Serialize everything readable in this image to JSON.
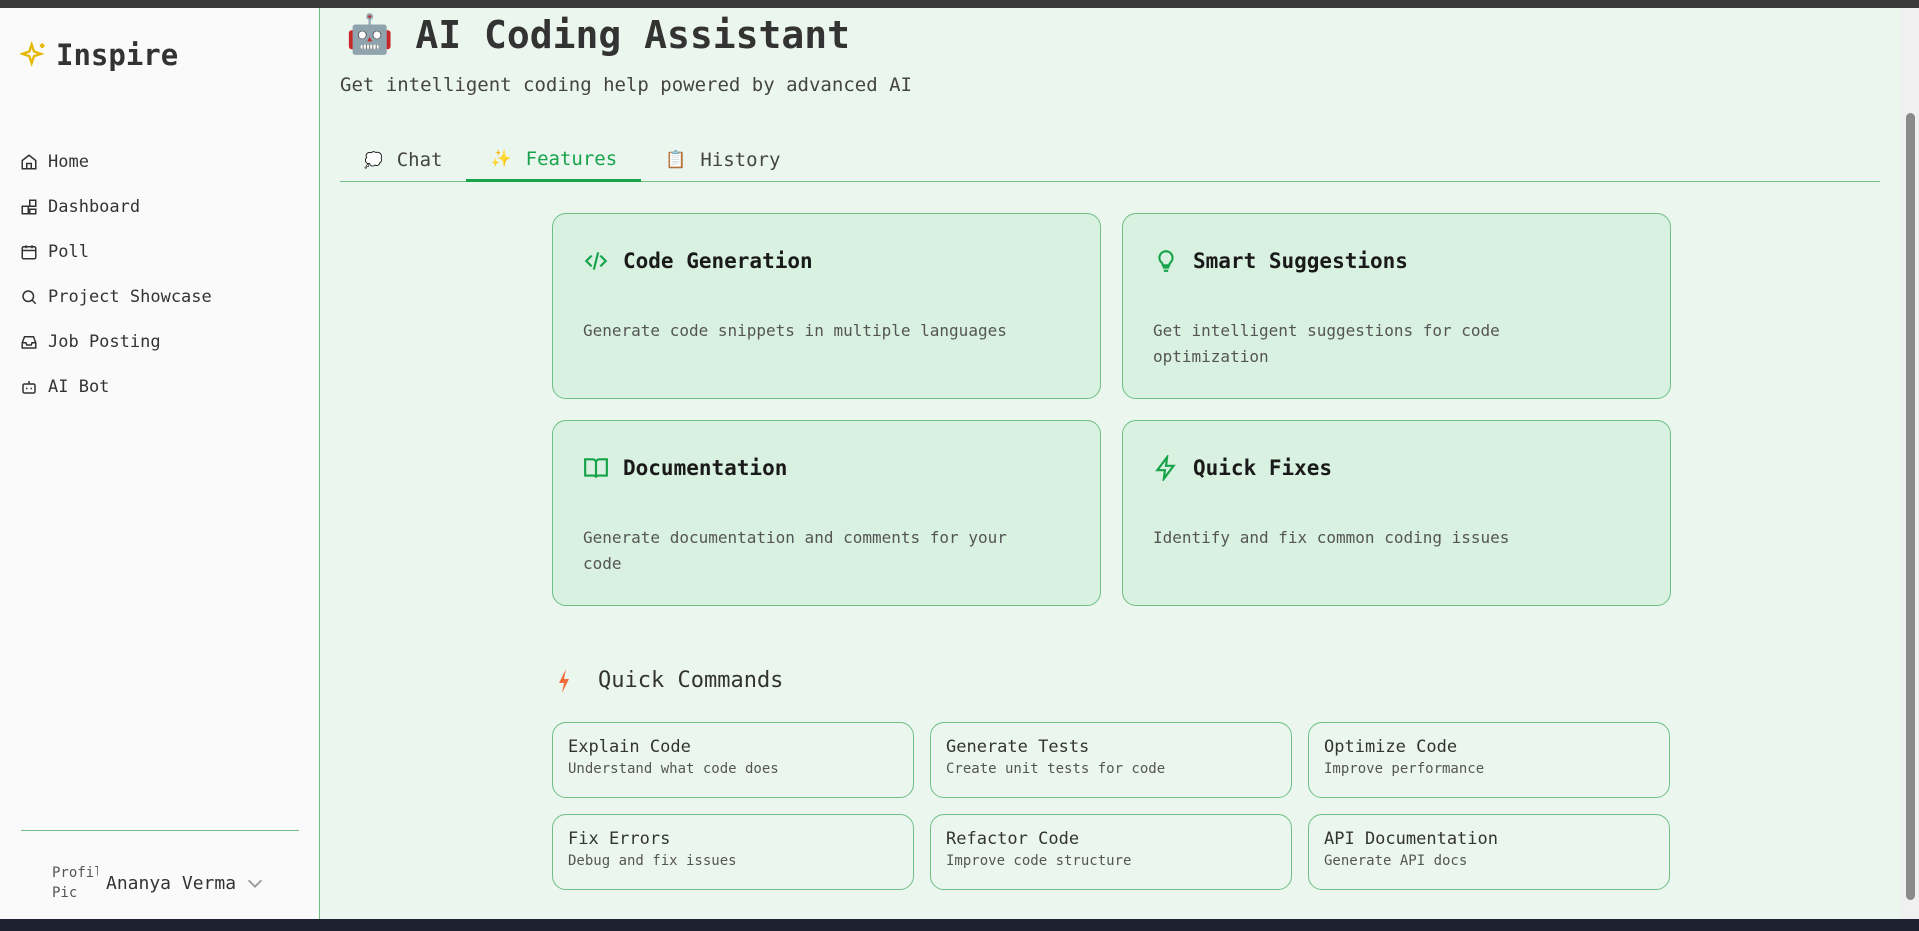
{
  "sidebar": {
    "brand": "Inspire",
    "items": [
      {
        "label": "Home",
        "icon": "home-icon"
      },
      {
        "label": "Dashboard",
        "icon": "dashboard-icon"
      },
      {
        "label": "Poll",
        "icon": "calendar-icon"
      },
      {
        "label": "Project Showcase",
        "icon": "search-icon"
      },
      {
        "label": "Job Posting",
        "icon": "inbox-icon"
      },
      {
        "label": "AI Bot",
        "icon": "bot-icon"
      }
    ],
    "profile": {
      "avatar_alt": "Profile Pic",
      "name": "Ananya Verma"
    }
  },
  "header": {
    "title": "AI Coding Assistant",
    "subtitle": "Get intelligent coding help powered by advanced AI"
  },
  "tabs": [
    {
      "icon": "💭",
      "label": "Chat"
    },
    {
      "icon": "✨",
      "label": "Features",
      "active": true
    },
    {
      "icon": "📋",
      "label": "History"
    }
  ],
  "features": [
    {
      "title": "Code Generation",
      "desc": "Generate code snippets in multiple languages",
      "icon": "code-icon"
    },
    {
      "title": "Smart Suggestions",
      "desc": "Get intelligent suggestions for code optimization",
      "icon": "lightbulb-icon"
    },
    {
      "title": "Documentation",
      "desc": "Generate documentation and comments for your code",
      "icon": "book-icon"
    },
    {
      "title": "Quick Fixes",
      "desc": "Identify and fix common coding issues",
      "icon": "zap-icon"
    }
  ],
  "quick_commands": {
    "title": "Quick Commands",
    "items": [
      {
        "title": "Explain Code",
        "desc": "Understand what code does"
      },
      {
        "title": "Generate Tests",
        "desc": "Create unit tests for code"
      },
      {
        "title": "Optimize Code",
        "desc": "Improve performance"
      },
      {
        "title": "Fix Errors",
        "desc": "Debug and fix issues"
      },
      {
        "title": "Refactor Code",
        "desc": "Improve code structure"
      },
      {
        "title": "API Documentation",
        "desc": "Generate API docs"
      }
    ]
  },
  "colors": {
    "accent": "#16a34a",
    "background": "#ebf7ee",
    "card": "#d9f1e0",
    "border": "#6fbf85"
  }
}
